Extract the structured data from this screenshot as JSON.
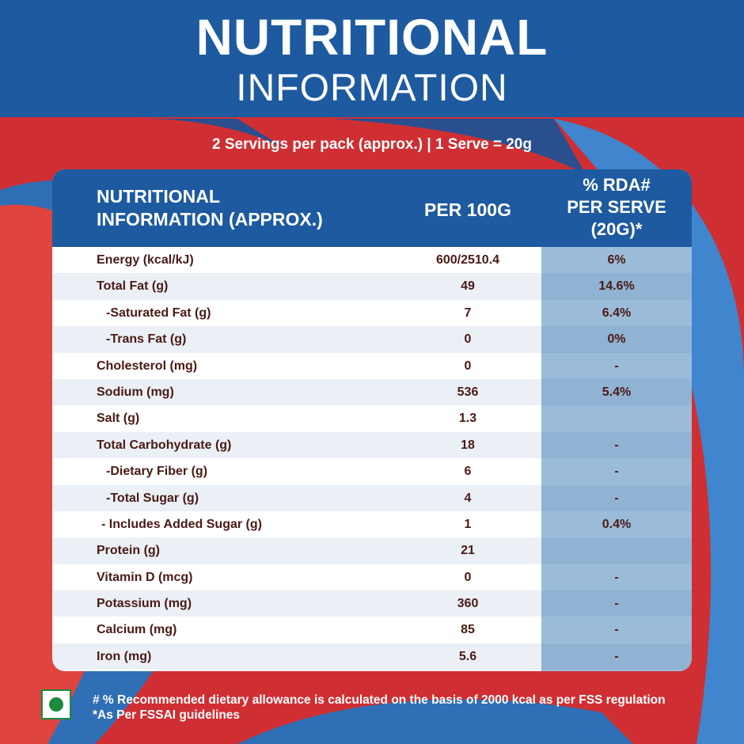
{
  "header": {
    "title_line1": "NUTRITIONAL",
    "title_line2": "INFORMATION"
  },
  "serving_info": "2 Servings per pack (approx.) | 1 Serve = 20g",
  "table": {
    "col_name": [
      "NUTRITIONAL",
      "INFORMATION (APPROX.)"
    ],
    "col_per": "PER 100G",
    "col_rda": [
      "% RDA#",
      "PER SERVE",
      "(20G)*"
    ],
    "rows": [
      {
        "name": "Energy (kcal/kJ)",
        "per100": "600/2510.4",
        "rda": "6%"
      },
      {
        "name": "Total Fat (g)",
        "per100": "49",
        "rda": "14.6%"
      },
      {
        "name": "-Saturated Fat (g)",
        "per100": "7",
        "rda": "6.4%"
      },
      {
        "name": "-Trans Fat (g)",
        "per100": "0",
        "rda": "0%"
      },
      {
        "name": "Cholesterol (mg)",
        "per100": "0",
        "rda": "-"
      },
      {
        "name": "Sodium (mg)",
        "per100": "536",
        "rda": "5.4%"
      },
      {
        "name": "Salt (g)",
        "per100": "1.3",
        "rda": ""
      },
      {
        "name": "Total Carbohydrate (g)",
        "per100": "18",
        "rda": "-"
      },
      {
        "name": "-Dietary Fiber (g)",
        "per100": "6",
        "rda": "-"
      },
      {
        "name": "-Total Sugar (g)",
        "per100": "4",
        "rda": "-"
      },
      {
        "name": "- Includes Added Sugar (g)",
        "per100": "1",
        "rda": "0.4%"
      },
      {
        "name": "Protein (g)",
        "per100": "21",
        "rda": ""
      },
      {
        "name": "Vitamin D (mcg)",
        "per100": "0",
        "rda": "-"
      },
      {
        "name": "Potassium (mg)",
        "per100": "360",
        "rda": "-"
      },
      {
        "name": "Calcium (mg)",
        "per100": "85",
        "rda": "-"
      },
      {
        "name": "Iron (mg)",
        "per100": "5.6",
        "rda": "-"
      }
    ]
  },
  "footer": {
    "line1": "# % Recommended dietary allowance  is calculated on the basis of 2000 kcal as per FSS regulation",
    "line2": "*As Per FSSAI guidelines"
  },
  "icons": {
    "veg_mark": "veg-symbol-icon"
  },
  "colors": {
    "blue": "#1d5aa0",
    "red": "#cf2f33",
    "light_blue": "#9bbcd9",
    "text_brown": "#4a1a14",
    "veg_green": "#1b8a3e"
  }
}
